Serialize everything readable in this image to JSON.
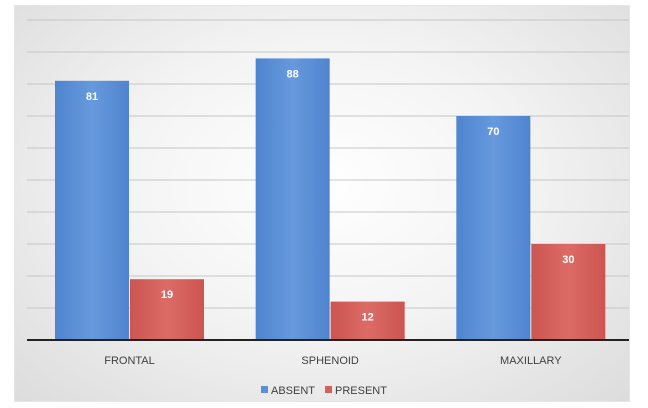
{
  "chart_data": {
    "type": "bar",
    "categories": [
      "FRONTAL",
      "SPHENOID",
      "MAXILLARY"
    ],
    "series": [
      {
        "name": "ABSENT",
        "values": [
          81,
          88,
          70
        ],
        "color": "#5b8fd6"
      },
      {
        "name": "PRESENT",
        "values": [
          19,
          12,
          30
        ],
        "color": "#d65f5b"
      }
    ],
    "ylim": [
      0,
      100
    ],
    "grid": true,
    "y_tick_labels_shown": false,
    "data_labels": true,
    "legend_position": "bottom",
    "title": "",
    "xlabel": "",
    "ylabel": ""
  }
}
